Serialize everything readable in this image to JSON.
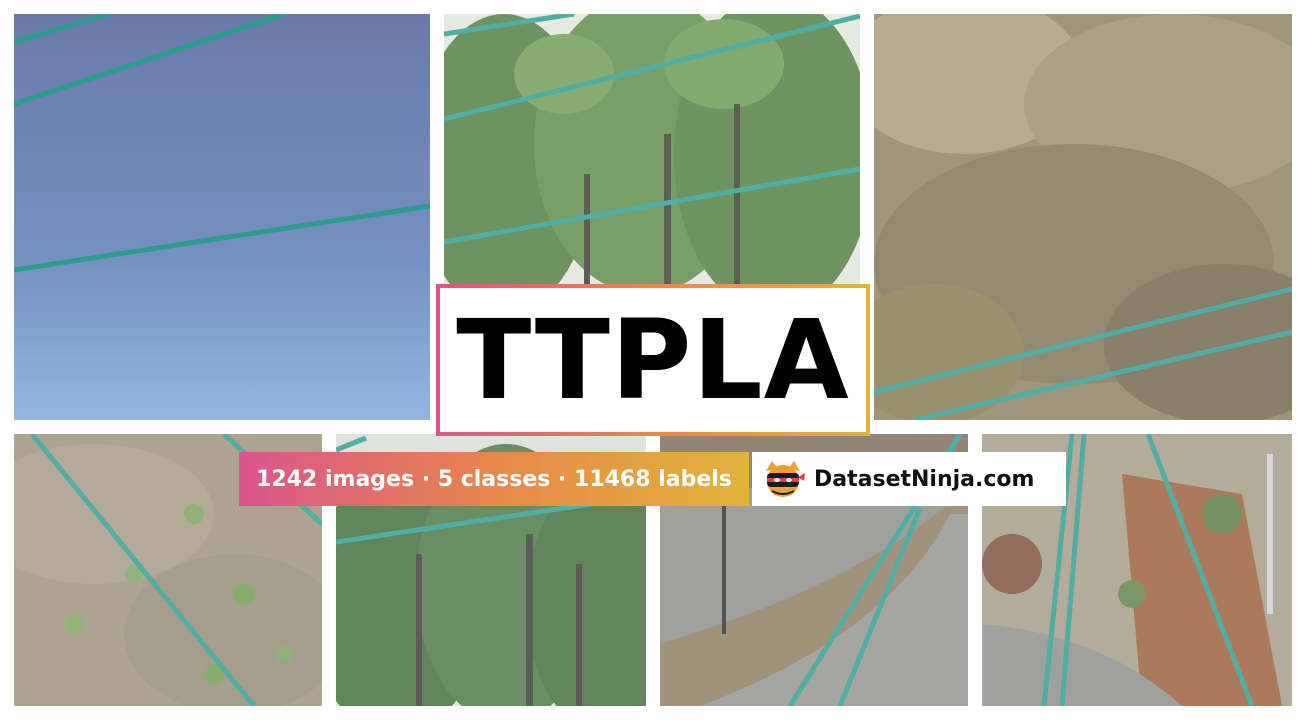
{
  "title": "TTPLA",
  "stats": "1242 images · 5 classes · 11468 labels",
  "brand": "DatasetNinja.com",
  "icons": [
    "ninja-logo-icon"
  ],
  "colors": {
    "wire_line": "#2a9d8f",
    "gradient_start": "#d9558c",
    "gradient_mid": "#e7874b",
    "gradient_end": "#e2b33b"
  }
}
